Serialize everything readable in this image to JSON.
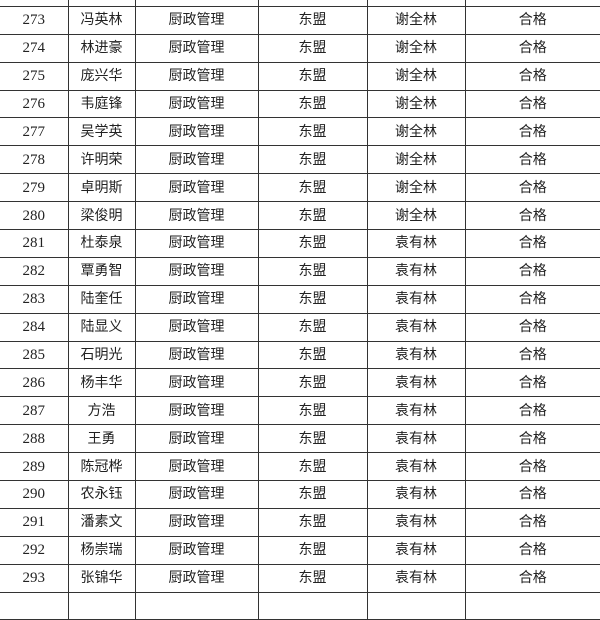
{
  "table": {
    "rows": [
      {
        "no": "273",
        "name": "冯英林",
        "major": "厨政管理",
        "location": "东盟",
        "teacher": "谢全林",
        "result": "合格"
      },
      {
        "no": "274",
        "name": "林进豪",
        "major": "厨政管理",
        "location": "东盟",
        "teacher": "谢全林",
        "result": "合格"
      },
      {
        "no": "275",
        "name": "庞兴华",
        "major": "厨政管理",
        "location": "东盟",
        "teacher": "谢全林",
        "result": "合格"
      },
      {
        "no": "276",
        "name": "韦庭锋",
        "major": "厨政管理",
        "location": "东盟",
        "teacher": "谢全林",
        "result": "合格"
      },
      {
        "no": "277",
        "name": "吴学英",
        "major": "厨政管理",
        "location": "东盟",
        "teacher": "谢全林",
        "result": "合格"
      },
      {
        "no": "278",
        "name": "许明荣",
        "major": "厨政管理",
        "location": "东盟",
        "teacher": "谢全林",
        "result": "合格"
      },
      {
        "no": "279",
        "name": "卓明斯",
        "major": "厨政管理",
        "location": "东盟",
        "teacher": "谢全林",
        "result": "合格"
      },
      {
        "no": "280",
        "name": "梁俊明",
        "major": "厨政管理",
        "location": "东盟",
        "teacher": "谢全林",
        "result": "合格"
      },
      {
        "no": "281",
        "name": "杜泰泉",
        "major": "厨政管理",
        "location": "东盟",
        "teacher": "袁有林",
        "result": "合格"
      },
      {
        "no": "282",
        "name": "覃勇智",
        "major": "厨政管理",
        "location": "东盟",
        "teacher": "袁有林",
        "result": "合格"
      },
      {
        "no": "283",
        "name": "陆奎任",
        "major": "厨政管理",
        "location": "东盟",
        "teacher": "袁有林",
        "result": "合格"
      },
      {
        "no": "284",
        "name": "陆显义",
        "major": "厨政管理",
        "location": "东盟",
        "teacher": "袁有林",
        "result": "合格"
      },
      {
        "no": "285",
        "name": "石明光",
        "major": "厨政管理",
        "location": "东盟",
        "teacher": "袁有林",
        "result": "合格"
      },
      {
        "no": "286",
        "name": "杨丰华",
        "major": "厨政管理",
        "location": "东盟",
        "teacher": "袁有林",
        "result": "合格"
      },
      {
        "no": "287",
        "name": "方浩",
        "major": "厨政管理",
        "location": "东盟",
        "teacher": "袁有林",
        "result": "合格"
      },
      {
        "no": "288",
        "name": "王勇",
        "major": "厨政管理",
        "location": "东盟",
        "teacher": "袁有林",
        "result": "合格"
      },
      {
        "no": "289",
        "name": "陈冠桦",
        "major": "厨政管理",
        "location": "东盟",
        "teacher": "袁有林",
        "result": "合格"
      },
      {
        "no": "290",
        "name": "农永钰",
        "major": "厨政管理",
        "location": "东盟",
        "teacher": "袁有林",
        "result": "合格"
      },
      {
        "no": "291",
        "name": "潘素文",
        "major": "厨政管理",
        "location": "东盟",
        "teacher": "袁有林",
        "result": "合格"
      },
      {
        "no": "292",
        "name": "杨崇瑞",
        "major": "厨政管理",
        "location": "东盟",
        "teacher": "袁有林",
        "result": "合格"
      },
      {
        "no": "293",
        "name": "张锦华",
        "major": "厨政管理",
        "location": "东盟",
        "teacher": "袁有林",
        "result": "合格"
      }
    ]
  }
}
